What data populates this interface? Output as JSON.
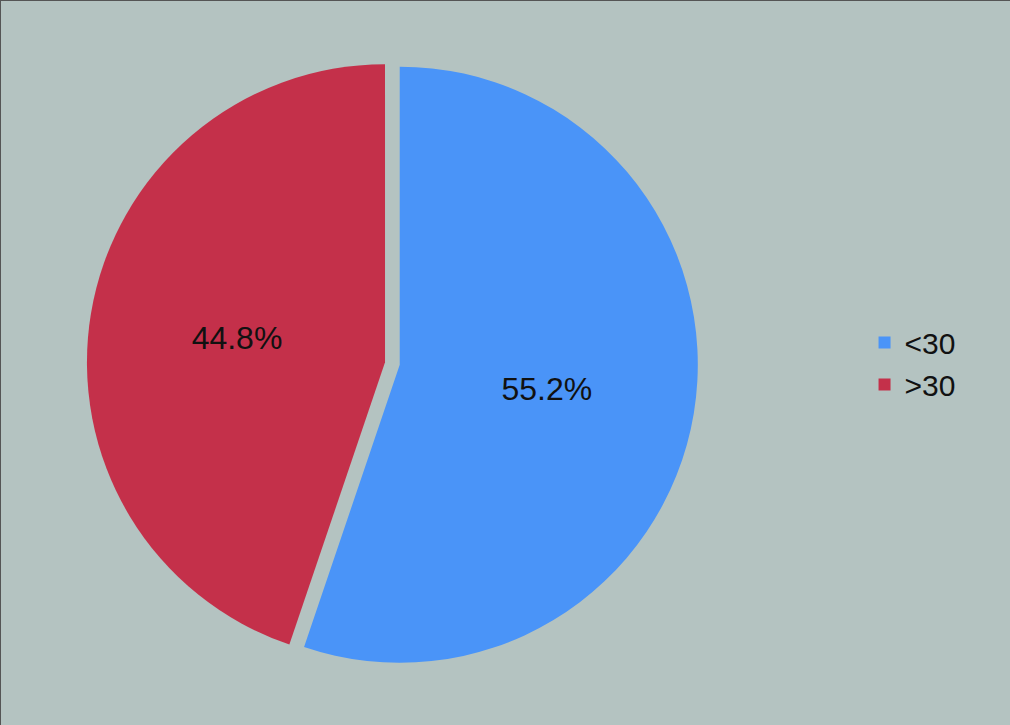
{
  "chart_data": {
    "type": "pie",
    "categories": [
      "<30",
      ">30"
    ],
    "values": [
      55.2,
      44.8
    ],
    "value_labels": [
      "55.2%",
      "44.8%"
    ],
    "colors": [
      "#4a94f8",
      "#c4304a"
    ],
    "data_labels": true,
    "legend": "right"
  }
}
